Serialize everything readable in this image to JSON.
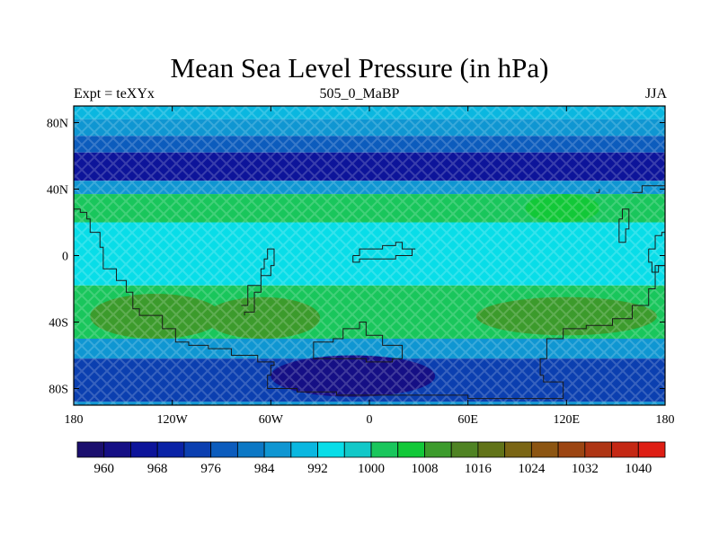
{
  "chart_data": {
    "type": "heatmap",
    "title": "Mean Sea Level Pressure (in hPa)",
    "left_string": "Expt = teXYx",
    "center_string": "505_0_MaBP",
    "right_string": "JJA",
    "x_ticks": [
      "180",
      "120W",
      "60W",
      "0",
      "60E",
      "120E",
      "180"
    ],
    "y_ticks": [
      "80N",
      "40N",
      "0",
      "40S",
      "80S"
    ],
    "xlim": [
      -180,
      180
    ],
    "ylim": [
      -90,
      90
    ],
    "colorbar": {
      "levels": [
        960,
        968,
        976,
        984,
        992,
        1000,
        1008,
        1016,
        1024,
        1032,
        1040
      ],
      "label_values": [
        "960",
        "968",
        "976",
        "984",
        "992",
        "1000",
        "1008",
        "1016",
        "1024",
        "1032",
        "1040"
      ],
      "colors": [
        "#1b0f6e",
        "#150f85",
        "#0d149a",
        "#0a22a6",
        "#0b3fb0",
        "#0c5cbd",
        "#0c78c5",
        "#0f96d2",
        "#0ab7e0",
        "#08dde8",
        "#12c8c8",
        "#19c65c",
        "#12c838",
        "#3c9b2c",
        "#4f8323",
        "#617318",
        "#7a6514",
        "#8c5512",
        "#9c4512",
        "#ae3514",
        "#c42814",
        "#de1e14"
      ]
    },
    "latitude_bands": [
      {
        "lat": [
          90,
          82
        ],
        "value": 990
      },
      {
        "lat": [
          82,
          72
        ],
        "value": 985
      },
      {
        "lat": [
          72,
          62
        ],
        "value": 978
      },
      {
        "lat": [
          62,
          45
        ],
        "value": 965
      },
      {
        "lat": [
          45,
          37
        ],
        "value": 985
      },
      {
        "lat": [
          37,
          20
        ],
        "value": 1000
      },
      {
        "lat": [
          20,
          -18
        ],
        "value": 995
      },
      {
        "lat": [
          -18,
          -50
        ],
        "value": 1003
      },
      {
        "lat": [
          -50,
          -62
        ],
        "value": 985
      },
      {
        "lat": [
          -62,
          -88
        ],
        "value": 972
      },
      {
        "lat": [
          -88,
          -90
        ],
        "value": 985
      }
    ],
    "regional_features": [
      {
        "name": "south-pacific-high",
        "lon": [
          -170,
          -90
        ],
        "lat": [
          -23,
          -50
        ],
        "value": 1009
      },
      {
        "name": "south-atlantic-high",
        "lon": [
          -100,
          -30
        ],
        "lat": [
          -25,
          -50
        ],
        "value": 1009
      },
      {
        "name": "indian-ocean-high",
        "lon": [
          65,
          175
        ],
        "lat": [
          -25,
          -48
        ],
        "value": 1009
      },
      {
        "name": "north-pacific-high",
        "lon": [
          95,
          140
        ],
        "lat": [
          37,
          20
        ],
        "value": 1006
      },
      {
        "name": "antarctic-low",
        "lon": [
          -60,
          40
        ],
        "lat": [
          -60,
          -85
        ],
        "value": 962
      }
    ]
  }
}
